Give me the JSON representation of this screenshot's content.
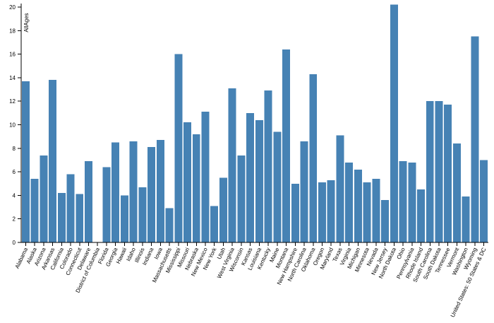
{
  "chart_data": {
    "type": "bar",
    "title": "",
    "xlabel": "",
    "ylabel": "AllAges",
    "ylim": [
      0,
      20
    ],
    "yticks": [
      0,
      2,
      4,
      6,
      8,
      10,
      12,
      14,
      16,
      18,
      20
    ],
    "grid": false,
    "bar_color": "#4682b4",
    "categories": [
      "Alabama",
      "Alaska",
      "Arizona",
      "Arkansas",
      "California",
      "Colorado",
      "Connecticut",
      "Delaware",
      "District of Columbia",
      "Florida",
      "Georgia",
      "Hawaii",
      "Idaho",
      "Illinois",
      "Indiana",
      "Iowa",
      "Massachusetts",
      "Mississippi",
      "Missouri",
      "Nebraska",
      "New Mexico",
      "New York",
      "Utah",
      "West Virginia",
      "Wisconsin",
      "Kansas",
      "Louisiana",
      "Kentucky",
      "Maine",
      "Montana",
      "New Hampshire",
      "North Carolina",
      "Oklahoma",
      "Oregon",
      "Maryland",
      "Texas",
      "Virginia",
      "Michigan",
      "Minnesota",
      "Nevada",
      "New Jersey",
      "North Dakota",
      "Ohio",
      "Pennsylvania",
      "Rhode Island",
      "South Carolina",
      "South Dakota",
      "Tennessee",
      "Vermont",
      "Washington",
      "Wyoming",
      "United States: 50 States & DC"
    ],
    "values": [
      13.7,
      5.4,
      7.4,
      13.8,
      4.2,
      5.8,
      4.1,
      6.9,
      null,
      6.4,
      8.5,
      4.0,
      8.6,
      4.7,
      8.1,
      8.7,
      2.9,
      16.0,
      10.2,
      9.2,
      11.1,
      3.1,
      5.5,
      13.1,
      7.4,
      11.0,
      10.4,
      12.9,
      9.4,
      16.4,
      5.0,
      8.6,
      14.3,
      5.1,
      5.3,
      9.1,
      6.8,
      6.2,
      5.1,
      5.4,
      3.6,
      20.2,
      6.9,
      6.8,
      4.5,
      12.0,
      12.0,
      11.7,
      8.4,
      3.9,
      17.5,
      7.0
    ]
  }
}
